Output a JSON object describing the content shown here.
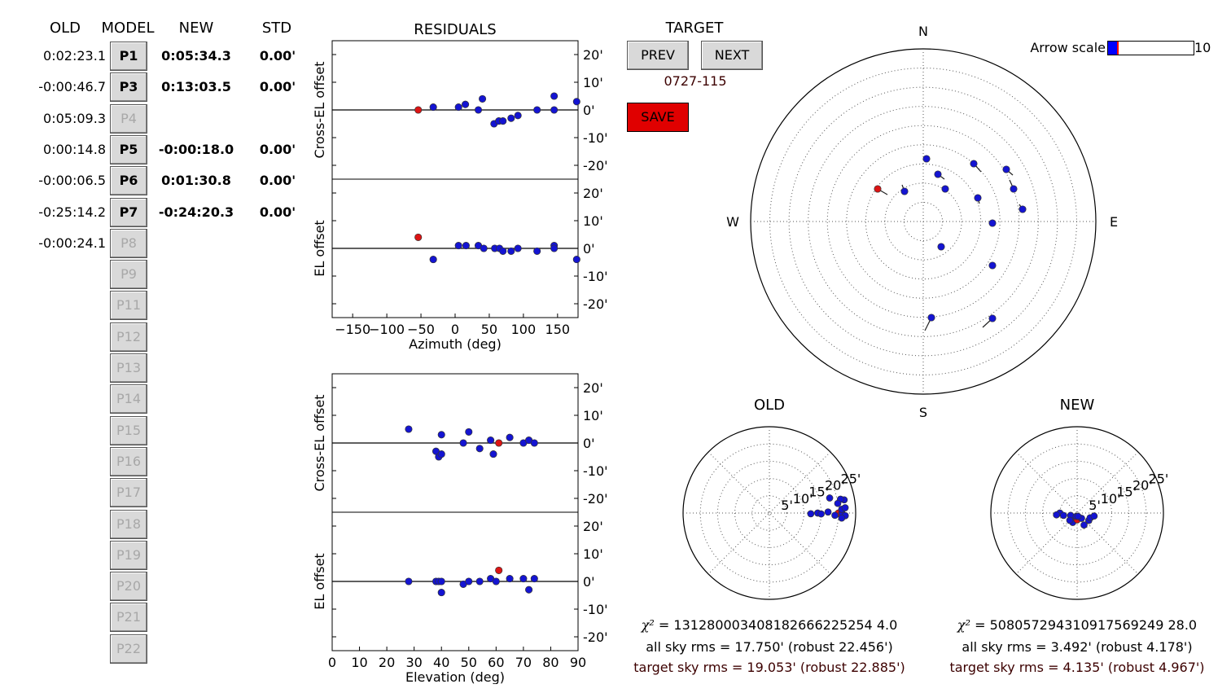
{
  "headers": {
    "old": "OLD",
    "model": "MODEL",
    "new": "NEW",
    "std": "STD",
    "residuals": "RESIDUALS",
    "target": "TARGET"
  },
  "model_rows": [
    {
      "old": "0:02:23.1",
      "label": "P1",
      "new": "0:05:34.3",
      "std": "0.00'",
      "enabled": true
    },
    {
      "old": "-0:00:46.7",
      "label": "P3",
      "new": "0:13:03.5",
      "std": "0.00'",
      "enabled": true
    },
    {
      "old": "0:05:09.3",
      "label": "P4",
      "new": "",
      "std": "",
      "enabled": false
    },
    {
      "old": "0:00:14.8",
      "label": "P5",
      "new": "-0:00:18.0",
      "std": "0.00'",
      "enabled": true
    },
    {
      "old": "-0:00:06.5",
      "label": "P6",
      "new": "0:01:30.8",
      "std": "0.00'",
      "enabled": true
    },
    {
      "old": "-0:25:14.2",
      "label": "P7",
      "new": "-0:24:20.3",
      "std": "0.00'",
      "enabled": true
    },
    {
      "old": "-0:00:24.1",
      "label": "P8",
      "new": "",
      "std": "",
      "enabled": false
    },
    {
      "old": "",
      "label": "P9",
      "new": "",
      "std": "",
      "enabled": false
    },
    {
      "old": "",
      "label": "P11",
      "new": "",
      "std": "",
      "enabled": false
    },
    {
      "old": "",
      "label": "P12",
      "new": "",
      "std": "",
      "enabled": false
    },
    {
      "old": "",
      "label": "P13",
      "new": "",
      "std": "",
      "enabled": false
    },
    {
      "old": "",
      "label": "P14",
      "new": "",
      "std": "",
      "enabled": false
    },
    {
      "old": "",
      "label": "P15",
      "new": "",
      "std": "",
      "enabled": false
    },
    {
      "old": "",
      "label": "P16",
      "new": "",
      "std": "",
      "enabled": false
    },
    {
      "old": "",
      "label": "P17",
      "new": "",
      "std": "",
      "enabled": false
    },
    {
      "old": "",
      "label": "P18",
      "new": "",
      "std": "",
      "enabled": false
    },
    {
      "old": "",
      "label": "P19",
      "new": "",
      "std": "",
      "enabled": false
    },
    {
      "old": "",
      "label": "P20",
      "new": "",
      "std": "",
      "enabled": false
    },
    {
      "old": "",
      "label": "P21",
      "new": "",
      "std": "",
      "enabled": false
    },
    {
      "old": "",
      "label": "P22",
      "new": "",
      "std": "",
      "enabled": false
    }
  ],
  "target": {
    "prev_label": "PREV",
    "next_label": "NEXT",
    "name": "0727-115",
    "save_label": "SAVE"
  },
  "arrow_scale": {
    "label": "Arrow scale",
    "max_label": "10",
    "value": 1
  },
  "colors": {
    "point": "#1414d2",
    "target_point": "#dc1414",
    "save_bg": "#e00000",
    "target_text": "#3c0000",
    "slider_fill": "#0000ff"
  },
  "sky_plot": {
    "compass": {
      "n": "N",
      "s": "S",
      "e": "E",
      "w": "W"
    }
  },
  "old_panel": {
    "title": "OLD",
    "ticks": [
      "5'",
      "10'",
      "15'",
      "20'",
      "25'"
    ],
    "chi2_symbol": "χ²",
    "chi2": "= 131280003408182666225254 4.0",
    "all_rms": "all sky rms = 17.750' (robust 22.456')",
    "target_rms": "target sky rms = 19.053' (robust 22.885')"
  },
  "new_panel": {
    "title": "NEW",
    "ticks": [
      "5'",
      "10'",
      "15'",
      "20'",
      "25'"
    ],
    "chi2_symbol": "χ²",
    "chi2": "= 508057294310917569249 28.0",
    "all_rms": "all sky rms = 3.492' (robust 4.178')",
    "target_rms": "target sky rms = 4.135' (robust 4.967')"
  },
  "chart_data": [
    {
      "type": "scatter",
      "ylabel": "Cross-EL offset",
      "xlim": [
        -180,
        180
      ],
      "ylim": [
        -25,
        25
      ],
      "yticks": [
        "20'",
        "10'",
        "0'",
        "-10'",
        "-20'"
      ],
      "points": [
        [
          -54,
          0,
          1
        ],
        [
          -32,
          1,
          0
        ],
        [
          5,
          1,
          0
        ],
        [
          15,
          2,
          0
        ],
        [
          34,
          0,
          0
        ],
        [
          40,
          4,
          0
        ],
        [
          57,
          -5,
          0
        ],
        [
          64,
          -4,
          0
        ],
        [
          70,
          -4,
          0
        ],
        [
          82,
          -3,
          0
        ],
        [
          92,
          -2,
          0
        ],
        [
          120,
          0,
          0
        ],
        [
          145,
          0,
          0
        ],
        [
          145,
          5,
          0
        ],
        [
          178,
          3,
          0
        ]
      ]
    },
    {
      "type": "scatter",
      "ylabel": "EL offset",
      "xlabel": "Azimuth (deg)",
      "xlim": [
        -180,
        180
      ],
      "ylim": [
        -25,
        25
      ],
      "xticks": [
        "−150",
        "−100",
        "−50",
        "0",
        "50",
        "100",
        "150"
      ],
      "yticks": [
        "20'",
        "10'",
        "0'",
        "-10'",
        "-20'"
      ],
      "points": [
        [
          -54,
          4,
          1
        ],
        [
          -32,
          -4,
          0
        ],
        [
          5,
          1,
          0
        ],
        [
          16,
          1,
          0
        ],
        [
          34,
          1,
          0
        ],
        [
          42,
          0,
          0
        ],
        [
          58,
          0,
          0
        ],
        [
          65,
          0,
          0
        ],
        [
          70,
          -1,
          0
        ],
        [
          82,
          -1,
          0
        ],
        [
          92,
          0,
          0
        ],
        [
          120,
          -1,
          0
        ],
        [
          145,
          1,
          0
        ],
        [
          145,
          0,
          0
        ],
        [
          178,
          -4,
          0
        ]
      ]
    },
    {
      "type": "scatter",
      "ylabel": "Cross-EL offset",
      "xlim": [
        0,
        90
      ],
      "ylim": [
        -25,
        25
      ],
      "yticks": [
        "20'",
        "10'",
        "0'",
        "-10'",
        "-20'"
      ],
      "points": [
        [
          28,
          5,
          0
        ],
        [
          38,
          -3,
          0
        ],
        [
          39,
          -5,
          0
        ],
        [
          40,
          3,
          0
        ],
        [
          40,
          -4,
          0
        ],
        [
          48,
          0,
          0
        ],
        [
          50,
          4,
          0
        ],
        [
          54,
          -2,
          0
        ],
        [
          58,
          1,
          0
        ],
        [
          59,
          -4,
          0
        ],
        [
          61,
          0,
          1
        ],
        [
          65,
          2,
          0
        ],
        [
          70,
          0,
          0
        ],
        [
          72,
          1,
          0
        ],
        [
          74,
          0,
          0
        ]
      ]
    },
    {
      "type": "scatter",
      "ylabel": "EL offset",
      "xlabel": "Elevation (deg)",
      "xlim": [
        0,
        90
      ],
      "ylim": [
        -25,
        25
      ],
      "xticks": [
        "0",
        "10",
        "20",
        "30",
        "40",
        "50",
        "60",
        "70",
        "80",
        "90"
      ],
      "yticks": [
        "20'",
        "10'",
        "0'",
        "-10'",
        "-20'"
      ],
      "points": [
        [
          28,
          0,
          0
        ],
        [
          38,
          0,
          0
        ],
        [
          39,
          0,
          0
        ],
        [
          40,
          0,
          0
        ],
        [
          40,
          -4,
          0
        ],
        [
          48,
          -1,
          0
        ],
        [
          50,
          0,
          0
        ],
        [
          54,
          0,
          0
        ],
        [
          58,
          1,
          0
        ],
        [
          60,
          0,
          0
        ],
        [
          61,
          4,
          1
        ],
        [
          65,
          1,
          0
        ],
        [
          70,
          1,
          0
        ],
        [
          72,
          -3,
          0
        ],
        [
          74,
          1,
          0
        ]
      ]
    },
    {
      "type": "scatter",
      "name": "sky",
      "points": [
        [
          0,
          62,
          1
        ],
        [
          -1,
          52,
          0
        ],
        [
          -2,
          40,
          0
        ],
        [
          -3,
          36,
          0
        ],
        [
          4,
          38,
          0
        ],
        [
          -4,
          58,
          0
        ],
        [
          -1,
          25,
          0
        ],
        [
          -2,
          11,
          0
        ],
        [
          -2,
          1,
          0
        ],
        [
          -3,
          12,
          0
        ],
        [
          -3,
          2,
          0
        ],
        [
          -1,
          3,
          0
        ],
        [
          2,
          7,
          0
        ],
        [
          1,
          6,
          0
        ],
        [
          -1,
          2,
          0
        ]
      ]
    },
    {
      "type": "scatter",
      "name": "old",
      "rlim": [
        0,
        25
      ],
      "points": [
        [
          90,
          20,
          1
        ],
        [
          91,
          12,
          0
        ],
        [
          90,
          14,
          0
        ],
        [
          91,
          15,
          0
        ],
        [
          89,
          17,
          0
        ],
        [
          92,
          19,
          0
        ],
        [
          90,
          21,
          0
        ],
        [
          92,
          22,
          0
        ],
        [
          94,
          21,
          0
        ],
        [
          87,
          21,
          0
        ],
        [
          80,
          22,
          0
        ],
        [
          79,
          21,
          0
        ],
        [
          82,
          20,
          0
        ],
        [
          76,
          18,
          0
        ],
        [
          86,
          22,
          0
        ]
      ]
    },
    {
      "type": "scatter",
      "name": "new",
      "rlim": [
        0,
        25
      ],
      "points": [
        [
          270,
          5,
          0
        ],
        [
          260,
          4,
          0
        ],
        [
          240,
          2,
          0
        ],
        [
          205,
          3,
          0
        ],
        [
          180,
          2,
          1
        ],
        [
          140,
          2,
          0
        ],
        [
          122,
          4,
          0
        ],
        [
          110,
          4,
          0
        ],
        [
          100,
          5,
          0
        ],
        [
          250,
          2,
          0
        ],
        [
          225,
          3,
          0
        ],
        [
          195,
          1,
          0
        ],
        [
          165,
          1,
          0
        ],
        [
          150,
          4,
          0
        ],
        [
          265,
          6,
          0
        ]
      ]
    }
  ]
}
